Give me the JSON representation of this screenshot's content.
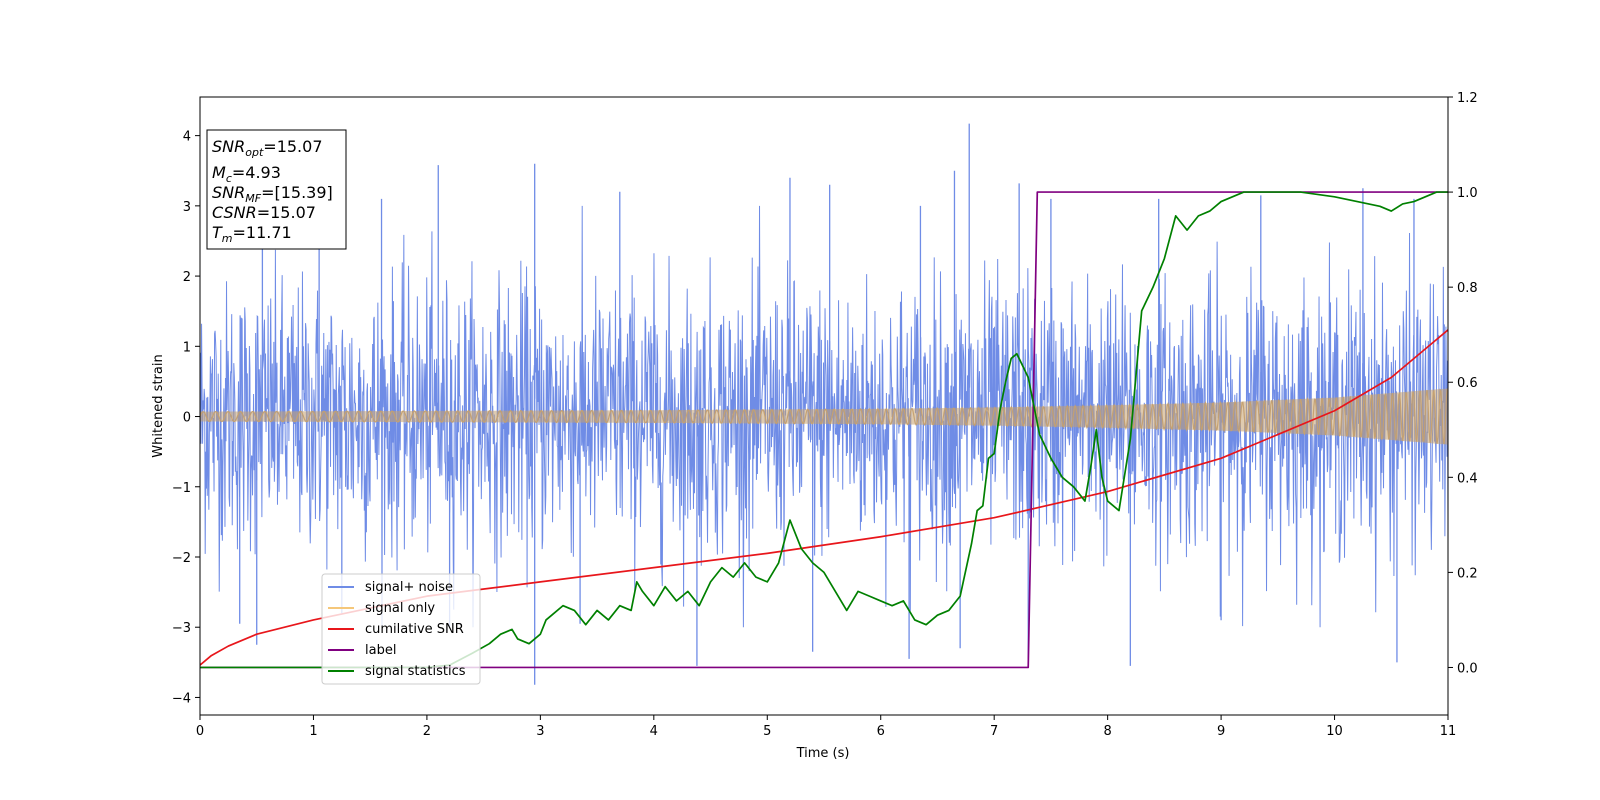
{
  "chart_data": {
    "type": "line",
    "xlabel": "Time (s)",
    "ylabel": "Whitened strain",
    "xlim": [
      0,
      11
    ],
    "ylim": [
      -4.25,
      4.55
    ],
    "y2lim": [
      -0.1,
      1.2
    ],
    "x_ticks": [
      "0",
      "1",
      "2",
      "3",
      "4",
      "5",
      "6",
      "7",
      "8",
      "9",
      "10",
      "11"
    ],
    "y_ticks": [
      "4",
      "3",
      "2",
      "1",
      "0",
      "−1",
      "−2",
      "−3",
      "−4"
    ],
    "y2_ticks": [
      "1.2",
      "1.0",
      "0.8",
      "0.6",
      "0.4",
      "0.2",
      "0.0"
    ],
    "grid": false,
    "legend_position": "lower-left",
    "legend": [
      {
        "label": "signal+ noise",
        "color": "#6f8ce6"
      },
      {
        "label": "signal only",
        "color": "#f5c77a"
      },
      {
        "label": "cumilative SNR",
        "color": "#e8161b"
      },
      {
        "label": "label",
        "color": "#800080"
      },
      {
        "label": "signal statistics",
        "color": "#008000"
      }
    ],
    "info_box": {
      "snr_opt_value": "=15.07",
      "mc_value": "=4.93",
      "snr_mf_value": "=[15.39]",
      "csnr_value": "=15.07",
      "tm_value": "=11.71"
    },
    "series": [
      {
        "name": "signal+ noise",
        "axis": "left",
        "color": "#6f8ce6",
        "band": {
          "x": [
            0,
            11
          ],
          "std": 0.95
        },
        "spikes": [
          {
            "x": 0.55,
            "y": 2.55
          },
          {
            "x": 1.05,
            "y": 2.7
          },
          {
            "x": 1.6,
            "y": 3.1
          },
          {
            "x": 2.1,
            "y": 3.58
          },
          {
            "x": 2.95,
            "y": 3.6
          },
          {
            "x": 3.7,
            "y": 3.2
          },
          {
            "x": 5.2,
            "y": 3.4
          },
          {
            "x": 5.55,
            "y": 3.3
          },
          {
            "x": 6.35,
            "y": 3.0
          },
          {
            "x": 6.65,
            "y": 3.5
          },
          {
            "x": 6.78,
            "y": 4.17
          },
          {
            "x": 7.22,
            "y": 3.32
          },
          {
            "x": 7.5,
            "y": 3.1
          },
          {
            "x": 8.45,
            "y": 3.1
          },
          {
            "x": 9.35,
            "y": 3.15
          },
          {
            "x": 10.25,
            "y": 3.25
          },
          {
            "x": 10.7,
            "y": 3.1
          },
          {
            "x": 0.35,
            "y": -2.95
          },
          {
            "x": 0.5,
            "y": -3.25
          },
          {
            "x": 1.25,
            "y": -2.8
          },
          {
            "x": 2.2,
            "y": -3.0
          },
          {
            "x": 2.95,
            "y": -3.82
          },
          {
            "x": 3.35,
            "y": -2.95
          },
          {
            "x": 4.38,
            "y": -3.55
          },
          {
            "x": 5.4,
            "y": -3.35
          },
          {
            "x": 6.25,
            "y": -3.45
          },
          {
            "x": 6.7,
            "y": -3.3
          },
          {
            "x": 7.3,
            "y": -3.45
          },
          {
            "x": 8.2,
            "y": -3.55
          },
          {
            "x": 9.0,
            "y": -2.9
          },
          {
            "x": 10.55,
            "y": -3.5
          }
        ]
      },
      {
        "name": "signal only",
        "axis": "left",
        "color": "#f5c77a",
        "envelope": {
          "x": [
            0,
            1,
            2,
            3,
            4,
            5,
            6,
            7,
            8,
            9,
            10,
            11
          ],
          "amplitude": [
            0.07,
            0.075,
            0.08,
            0.085,
            0.09,
            0.1,
            0.11,
            0.13,
            0.16,
            0.2,
            0.27,
            0.4
          ]
        }
      },
      {
        "name": "cumilative SNR",
        "axis": "right",
        "color": "#e8161b",
        "x": [
          0,
          0.1,
          0.25,
          0.5,
          1,
          1.5,
          2,
          3,
          4,
          5,
          6,
          7,
          8,
          9,
          10,
          10.5,
          11
        ],
        "y": [
          0.005,
          0.025,
          0.045,
          0.07,
          0.1,
          0.125,
          0.15,
          0.18,
          0.21,
          0.24,
          0.275,
          0.315,
          0.37,
          0.44,
          0.54,
          0.61,
          0.71
        ]
      },
      {
        "name": "label",
        "axis": "right",
        "color": "#800080",
        "x": [
          0,
          7.3,
          7.38,
          11
        ],
        "y": [
          0,
          0,
          1,
          1
        ]
      },
      {
        "name": "signal statistics",
        "axis": "right",
        "color": "#008000",
        "x": [
          0,
          2.0,
          2.2,
          2.4,
          2.55,
          2.65,
          2.75,
          2.8,
          2.9,
          3.0,
          3.05,
          3.1,
          3.2,
          3.3,
          3.4,
          3.5,
          3.6,
          3.7,
          3.8,
          3.85,
          3.9,
          4.0,
          4.1,
          4.2,
          4.3,
          4.4,
          4.5,
          4.6,
          4.7,
          4.8,
          4.9,
          5.0,
          5.1,
          5.2,
          5.3,
          5.4,
          5.5,
          5.6,
          5.7,
          5.8,
          5.9,
          6.0,
          6.1,
          6.2,
          6.3,
          6.4,
          6.5,
          6.6,
          6.7,
          6.8,
          6.85,
          6.9,
          6.95,
          7.0,
          7.05,
          7.1,
          7.15,
          7.2,
          7.3,
          7.4,
          7.5,
          7.6,
          7.7,
          7.8,
          7.85,
          7.9,
          7.95,
          8.0,
          8.1,
          8.2,
          8.3,
          8.4,
          8.5,
          8.6,
          8.7,
          8.8,
          8.9,
          9.0,
          9.1,
          9.2,
          9.3,
          9.5,
          9.7,
          10.0,
          10.2,
          10.4,
          10.5,
          10.6,
          10.7,
          10.8,
          10.9,
          11.0
        ],
        "y": [
          0.0,
          0.0,
          0.005,
          0.03,
          0.05,
          0.07,
          0.08,
          0.06,
          0.05,
          0.07,
          0.1,
          0.11,
          0.13,
          0.12,
          0.09,
          0.12,
          0.1,
          0.13,
          0.12,
          0.18,
          0.16,
          0.13,
          0.17,
          0.14,
          0.16,
          0.13,
          0.18,
          0.21,
          0.19,
          0.22,
          0.19,
          0.18,
          0.22,
          0.31,
          0.25,
          0.22,
          0.2,
          0.16,
          0.12,
          0.16,
          0.15,
          0.14,
          0.13,
          0.14,
          0.1,
          0.09,
          0.11,
          0.12,
          0.15,
          0.26,
          0.33,
          0.34,
          0.44,
          0.45,
          0.54,
          0.6,
          0.65,
          0.66,
          0.61,
          0.49,
          0.44,
          0.4,
          0.38,
          0.35,
          0.42,
          0.5,
          0.4,
          0.35,
          0.33,
          0.48,
          0.75,
          0.8,
          0.86,
          0.95,
          0.92,
          0.95,
          0.96,
          0.98,
          0.99,
          1.0,
          1.0,
          1.0,
          1.0,
          0.99,
          0.98,
          0.97,
          0.96,
          0.975,
          0.98,
          0.99,
          1.0,
          1.0
        ]
      }
    ]
  }
}
